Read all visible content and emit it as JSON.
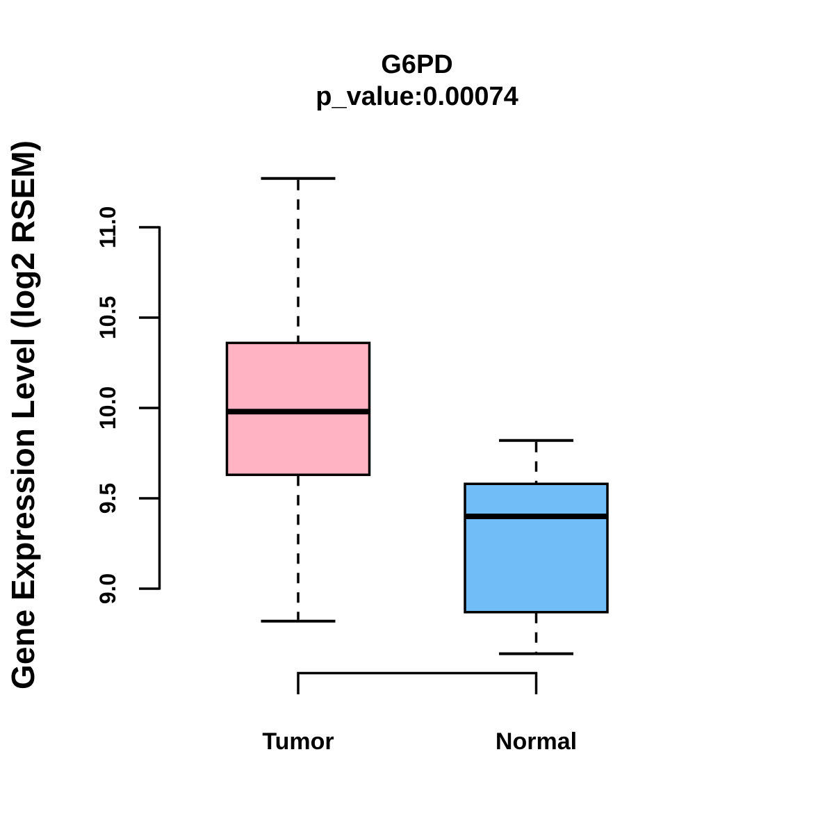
{
  "chart_data": {
    "type": "boxplot",
    "title": "G6PD",
    "subtitle": "p_value:0.00074",
    "ylabel": "Gene Expression Level (log2 RSEM)",
    "xlabel": "",
    "categories": [
      "Tumor",
      "Normal"
    ],
    "ylim": [
      9.0,
      11.0
    ],
    "ytick_values": [
      9.0,
      9.5,
      10.0,
      10.5,
      11.0
    ],
    "ytick_labels": [
      "9.0",
      "9.5",
      "10.0",
      "10.5",
      "11.0"
    ],
    "grid": false,
    "legend_position": "none",
    "whisker_line_style": "dashed",
    "series": [
      {
        "name": "Tumor",
        "fill": "#ffb3c3",
        "stats": {
          "lower_whisker": 8.82,
          "q1": 9.63,
          "median": 9.98,
          "q3": 10.36,
          "upper_whisker": 11.27
        }
      },
      {
        "name": "Normal",
        "fill": "#70bdf8",
        "stats": {
          "lower_whisker": 8.64,
          "q1": 8.87,
          "median": 9.4,
          "q3": 9.58,
          "upper_whisker": 9.82
        }
      }
    ],
    "comparison_bracket": {
      "from": "Tumor",
      "to": "Normal"
    },
    "colors": {
      "stroke": "#000000",
      "background": "#ffffff",
      "tumor_fill": "#ffb3c3",
      "normal_fill": "#70bdf8"
    }
  }
}
